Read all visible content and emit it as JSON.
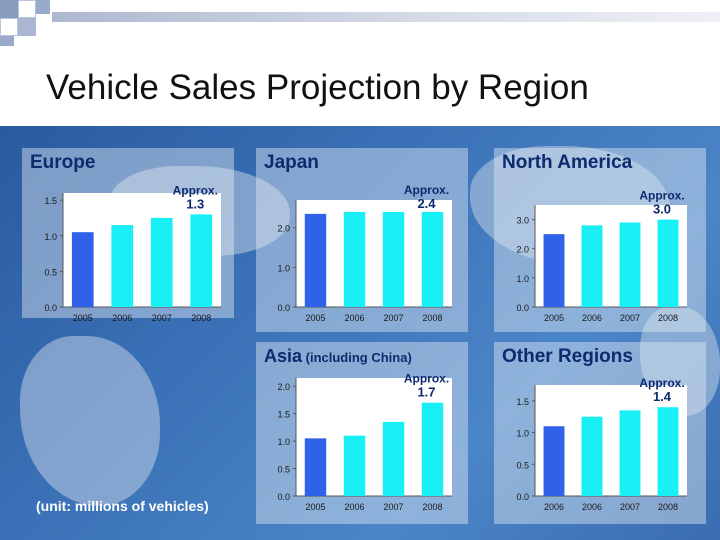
{
  "slide": {
    "title": "Vehicle Sales Projection by Region",
    "unit_note": "(unit: millions of vehicles)"
  },
  "colors": {
    "actual_bar": "#2f62e8",
    "projected_bar": "#18f0f5",
    "title_text": "#0e2a6e"
  },
  "chart_data": [
    {
      "type": "bar",
      "title": "Europe",
      "subtitle": "",
      "categories": [
        "2005",
        "2006",
        "2007",
        "2008"
      ],
      "values": [
        1.05,
        1.15,
        1.25,
        1.3
      ],
      "ylim": [
        0,
        1.6
      ],
      "yticks": [
        "0.0",
        "0.5",
        "1.0",
        "1.5"
      ],
      "ytick_values": [
        0,
        0.5,
        1.0,
        1.5
      ],
      "annotation": [
        "Approx.",
        "1.3"
      ]
    },
    {
      "type": "bar",
      "title": "Japan",
      "subtitle": "",
      "categories": [
        "2005",
        "2006",
        "2007",
        "2008"
      ],
      "values": [
        2.35,
        2.4,
        2.4,
        2.4
      ],
      "ylim": [
        0,
        2.7
      ],
      "yticks": [
        "0.0",
        "1.0",
        "2.0"
      ],
      "ytick_values": [
        0,
        1.0,
        2.0
      ],
      "annotation": [
        "Approx.",
        "2.4"
      ]
    },
    {
      "type": "bar",
      "title": "North America",
      "subtitle": "",
      "categories": [
        "2005",
        "2006",
        "2007",
        "2008"
      ],
      "values": [
        2.5,
        2.8,
        2.9,
        3.0
      ],
      "ylim": [
        0,
        3.5
      ],
      "yticks": [
        "0.0",
        "1.0",
        "2.0",
        "3.0"
      ],
      "ytick_values": [
        0,
        1.0,
        2.0,
        3.0
      ],
      "annotation": [
        "Approx.",
        "3.0"
      ]
    },
    {
      "type": "bar",
      "title": "Asia",
      "subtitle": "(including China)",
      "categories": [
        "2005",
        "2006",
        "2007",
        "2008"
      ],
      "values": [
        1.05,
        1.1,
        1.35,
        1.7
      ],
      "ylim": [
        0,
        2.15
      ],
      "yticks": [
        "0.0",
        "0.5",
        "1.0",
        "1.5",
        "2.0"
      ],
      "ytick_values": [
        0,
        0.5,
        1.0,
        1.5,
        2.0
      ],
      "annotation": [
        "Approx.",
        "1.7"
      ]
    },
    {
      "type": "bar",
      "title": "Other Regions",
      "subtitle": "",
      "categories": [
        "2006",
        "2006",
        "2007",
        "2008"
      ],
      "values": [
        1.1,
        1.25,
        1.35,
        1.4
      ],
      "ylim": [
        0,
        1.75
      ],
      "yticks": [
        "0.0",
        "0.5",
        "1.0",
        "1.5"
      ],
      "ytick_values": [
        0,
        0.5,
        1.0,
        1.5
      ],
      "annotation": [
        "Approx.",
        "1.4"
      ]
    }
  ]
}
